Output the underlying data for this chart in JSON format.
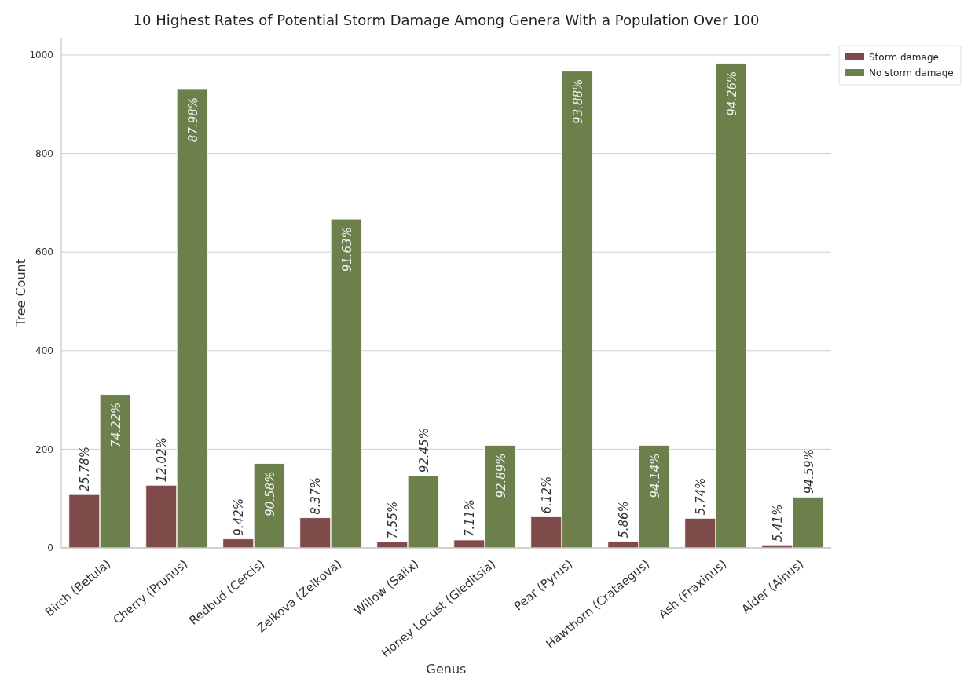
{
  "chart_data": {
    "type": "bar",
    "title": "10 Highest Rates of Potential Storm Damage Among Genera With a Population Over 100",
    "xlabel": "Genus",
    "ylabel": "Tree Count",
    "categories": [
      "Birch (Betula)",
      "Cherry (Prunus)",
      "Redbud (Cercis)",
      "Zelkova (Zelkova)",
      "Willow (Salix)",
      "Honey Locust (Gleditsia)",
      "Pear (Pyrus)",
      "Hawthorn (Crataegus)",
      "Ash (Fraxinus)",
      "Alder (Alnus)"
    ],
    "series": [
      {
        "name": "Storm damage",
        "color": "#7f4a4a",
        "values": [
          108,
          127,
          18,
          61,
          12,
          16,
          63,
          13,
          60,
          6
        ]
      },
      {
        "name": "No storm damage",
        "color": "#6d7f4a",
        "values": [
          311,
          930,
          171,
          667,
          146,
          208,
          967,
          208,
          983,
          103
        ]
      }
    ],
    "annotations": [
      "25.78%",
      {
        "text": "74.22%",
        "x": "Birch (Betula)",
        "y": 311
      },
      "12.02%",
      {
        "text": "87.98%",
        "x": "Cherry (Prunus)",
        "y": 930
      },
      "9.42%",
      {
        "text": "90.58%",
        "x": "Redbud (Cercis)",
        "y": 171
      },
      "8.37%",
      {
        "text": "91.63%",
        "x": "Zelkova (Zelkova)",
        "y": 667
      },
      "7.55%",
      {
        "text": "92.45%",
        "x": "Willow (Salix)",
        "y": 146
      },
      "7.11%",
      {
        "text": "92.89%",
        "x": "Honey Locust (Gleditsia)",
        "y": 208
      },
      "6.12%",
      {
        "text": "93.88%",
        "x": "Pear (Pyrus)",
        "y": 967
      },
      "5.86%",
      {
        "text": "94.14%",
        "x": "Hawthorn (Crataegus)",
        "y": 208
      },
      "5.74%",
      {
        "text": "94.26%",
        "x": "Ash (Fraxinus)",
        "y": 983
      },
      "5.41%",
      {
        "text": "94.59%",
        "x": "Alder (Alnus)",
        "y": 103
      }
    ],
    "ylim": [
      0,
      1035
    ],
    "yticks": [
      0,
      200,
      400,
      600,
      800,
      1000
    ],
    "grid": "y",
    "legend": "top right"
  }
}
